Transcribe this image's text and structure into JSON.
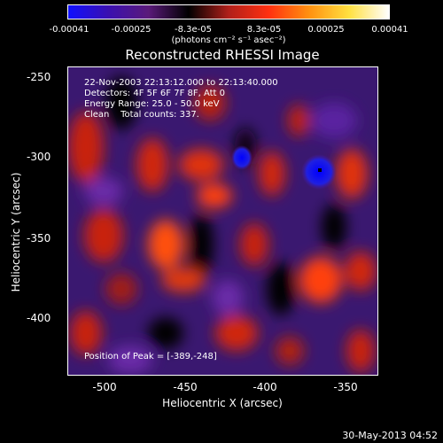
{
  "colors": {
    "cmap": [
      "#1010ff",
      "#3a10b0",
      "#5a1a7a",
      "#000000",
      "#b0201a",
      "#ff3010",
      "#ff9010",
      "#ffe040",
      "#ffffff"
    ],
    "frame": "#ffffff"
  },
  "colorbar": {
    "ticks": [
      "-0.00041",
      "-0.00025",
      "-8.3e-05",
      "8.3e-05",
      "0.00025",
      "0.00041"
    ],
    "units": "(photons cm⁻² s⁻¹ asec⁻²)"
  },
  "title": "Reconstructed RHESSI Image",
  "info": {
    "time": "22-Nov-2003 22:13:12.000 to 22:13:40.000",
    "detectors": "Detectors: 4F 5F 6F 7F 8F, Att 0",
    "energy": "Energy Range: 25.0 - 50.0 keV",
    "clean": "Clean    Total counts: 337."
  },
  "peak_text": "Position of Peak = [-389,-248]",
  "axes": {
    "xlabel": "Heliocentric X (arcsec)",
    "ylabel": "Heliocentric Y (arcsec)",
    "xticks": [
      "-500",
      "-450",
      "-400",
      "-350"
    ],
    "yticks": [
      "-250",
      "-300",
      "-350",
      "-400"
    ]
  },
  "footer": "30-May-2013 04:52"
}
